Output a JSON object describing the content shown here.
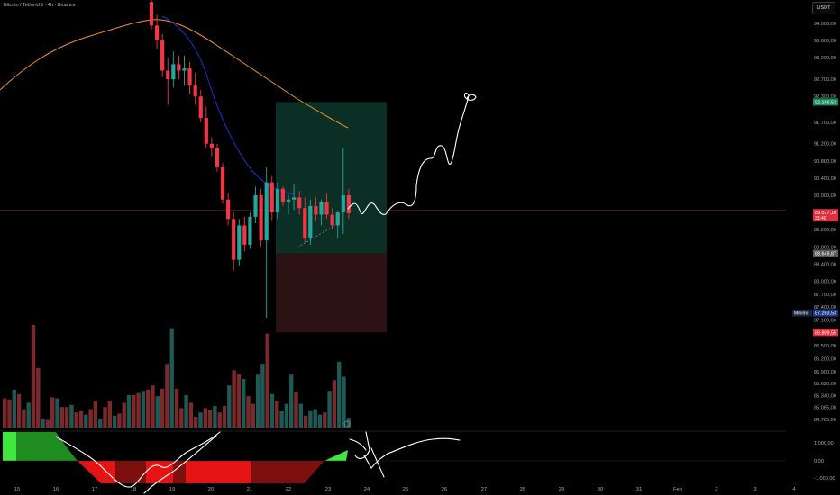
{
  "header": {
    "symbol_title": "Bitcoin / TetherUS · 4h · Binance",
    "currency": "USDT"
  },
  "colors": {
    "up": "#26a69a",
    "down": "#f23645",
    "ema_fast": "#1f2fd0",
    "ema_slow": "#f0962a",
    "target_zone": "#0b2e25",
    "stop_zone": "#2c1214",
    "osc_bright_green": "#3ee83e",
    "osc_dark_green": "#1e8c1e",
    "osc_red": "#e51414",
    "osc_dark_red": "#7d0f0f"
  },
  "chart_data": {
    "type": "candlestick",
    "y_axis": {
      "range": [
        84785,
        94280
      ],
      "tick_labels": [
        "94.000,00",
        "93.600,00",
        "93.200,00",
        "92.700,00",
        "92.300,00",
        "91.700,00",
        "91.200,00",
        "90.800,00",
        "90.400,00",
        "90.000,00",
        "89.200,00",
        "88.800,00",
        "88.400,00",
        "88.000,00",
        "87.700,00",
        "87.400,00",
        "87.100,00",
        "86.500,00",
        "86.200,00",
        "85.900,00",
        "85.620,00",
        "85.340,00",
        "85.065,00",
        "84.785,00"
      ]
    },
    "x_axis": {
      "tick_labels": [
        "15",
        "16",
        "17",
        "18",
        "19",
        "20",
        "21",
        "22",
        "23",
        "24",
        "25",
        "26",
        "27",
        "28",
        "29",
        "30",
        "31",
        "Feb",
        "2",
        "3",
        "4"
      ]
    },
    "price_markers": [
      {
        "label": "92.169,52",
        "value": 92169.52,
        "kind": "target"
      },
      {
        "label": "89.577,10",
        "sublabel": "33:40",
        "value": 89577.1,
        "kind": "last"
      },
      {
        "label": "88.649,87",
        "value": 88649.87,
        "kind": "entry"
      },
      {
        "label": "Mínimo",
        "value": 87263.53,
        "value_label": "87.263,53",
        "kind": "low"
      },
      {
        "label": "86.809,55",
        "value": 86809.55,
        "kind": "stop"
      }
    ],
    "position_tool": {
      "entry": 88649.87,
      "target": 92169.52,
      "stop": 86809.55
    },
    "candles": [
      {
        "o": 94500,
        "h": 94700,
        "l": 93850,
        "c": 93950
      },
      {
        "o": 93950,
        "h": 94200,
        "l": 93400,
        "c": 93600
      },
      {
        "o": 93600,
        "h": 93750,
        "l": 92750,
        "c": 92900
      },
      {
        "o": 92900,
        "h": 93200,
        "l": 92100,
        "c": 92700
      },
      {
        "o": 92700,
        "h": 93350,
        "l": 92500,
        "c": 93050
      },
      {
        "o": 93050,
        "h": 93250,
        "l": 92700,
        "c": 92900
      },
      {
        "o": 92900,
        "h": 93250,
        "l": 92550,
        "c": 92950
      },
      {
        "o": 92950,
        "h": 93100,
        "l": 92350,
        "c": 92550
      },
      {
        "o": 92550,
        "h": 92850,
        "l": 92100,
        "c": 92300
      },
      {
        "o": 92300,
        "h": 92450,
        "l": 91700,
        "c": 91800
      },
      {
        "o": 91800,
        "h": 92050,
        "l": 91100,
        "c": 91200
      },
      {
        "o": 91200,
        "h": 91350,
        "l": 90900,
        "c": 91100
      },
      {
        "o": 91100,
        "h": 91200,
        "l": 90550,
        "c": 90650
      },
      {
        "o": 90650,
        "h": 90750,
        "l": 89800,
        "c": 89900
      },
      {
        "o": 89900,
        "h": 90050,
        "l": 89300,
        "c": 89450
      },
      {
        "o": 89450,
        "h": 89600,
        "l": 88250,
        "c": 88500
      },
      {
        "o": 88500,
        "h": 89450,
        "l": 88350,
        "c": 89300
      },
      {
        "o": 89300,
        "h": 89500,
        "l": 88700,
        "c": 88850
      },
      {
        "o": 88850,
        "h": 89600,
        "l": 88750,
        "c": 89500
      },
      {
        "o": 89500,
        "h": 90200,
        "l": 89350,
        "c": 90000
      },
      {
        "o": 90000,
        "h": 90150,
        "l": 88800,
        "c": 88950
      },
      {
        "o": 88950,
        "h": 90650,
        "l": 87150,
        "c": 90300
      },
      {
        "o": 90300,
        "h": 90450,
        "l": 89400,
        "c": 89600
      },
      {
        "o": 89600,
        "h": 90300,
        "l": 89450,
        "c": 90150
      },
      {
        "o": 90150,
        "h": 90200,
        "l": 89750,
        "c": 89850
      },
      {
        "o": 89850,
        "h": 90000,
        "l": 89550,
        "c": 89900
      },
      {
        "o": 89900,
        "h": 90250,
        "l": 89650,
        "c": 89950
      },
      {
        "o": 89950,
        "h": 90100,
        "l": 89550,
        "c": 89700
      },
      {
        "o": 89700,
        "h": 89950,
        "l": 88900,
        "c": 89000
      },
      {
        "o": 89000,
        "h": 89900,
        "l": 88850,
        "c": 89750
      },
      {
        "o": 89750,
        "h": 89950,
        "l": 89400,
        "c": 89550
      },
      {
        "o": 89550,
        "h": 89900,
        "l": 89300,
        "c": 89850
      },
      {
        "o": 89850,
        "h": 90050,
        "l": 89450,
        "c": 89550
      },
      {
        "o": 89550,
        "h": 89700,
        "l": 89200,
        "c": 89300
      },
      {
        "o": 89300,
        "h": 89650,
        "l": 89000,
        "c": 89600
      },
      {
        "o": 89600,
        "h": 91100,
        "l": 89100,
        "c": 90000
      },
      {
        "o": 90000,
        "h": 90150,
        "l": 89450,
        "c": 89580
      }
    ],
    "volume_relative": [
      0.27,
      0.26,
      0.35,
      0.31,
      0.17,
      0.23,
      0.95,
      0.55,
      0.08,
      0.07,
      0.28,
      0.27,
      0.19,
      0.19,
      0.21,
      0.14,
      0.15,
      0.12,
      0.17,
      0.25,
      0.08,
      0.19,
      0.25,
      0.11,
      0.13,
      0.23,
      0.3,
      0.3,
      0.32,
      0.34,
      0.35,
      0.39,
      0.29,
      0.36,
      0.59,
      0.92,
      0.36,
      0.18,
      0.3,
      0.23,
      0.1,
      0.14,
      0.18,
      0.16,
      0.2,
      0.14,
      0.2,
      0.39,
      0.53,
      0.5,
      0.45,
      0.29,
      0.22,
      0.49,
      0.59,
      0.87,
      0.31,
      0.25,
      0.15,
      0.22,
      0.49,
      0.33,
      0.22,
      0.11,
      0.15,
      0.17,
      0.12,
      0.14,
      0.34,
      0.44,
      0.61,
      0.47,
      0.09
    ],
    "oscillator": {
      "tick_labels": [
        "1.000,00",
        "0,00",
        "-1.000,00"
      ]
    }
  }
}
